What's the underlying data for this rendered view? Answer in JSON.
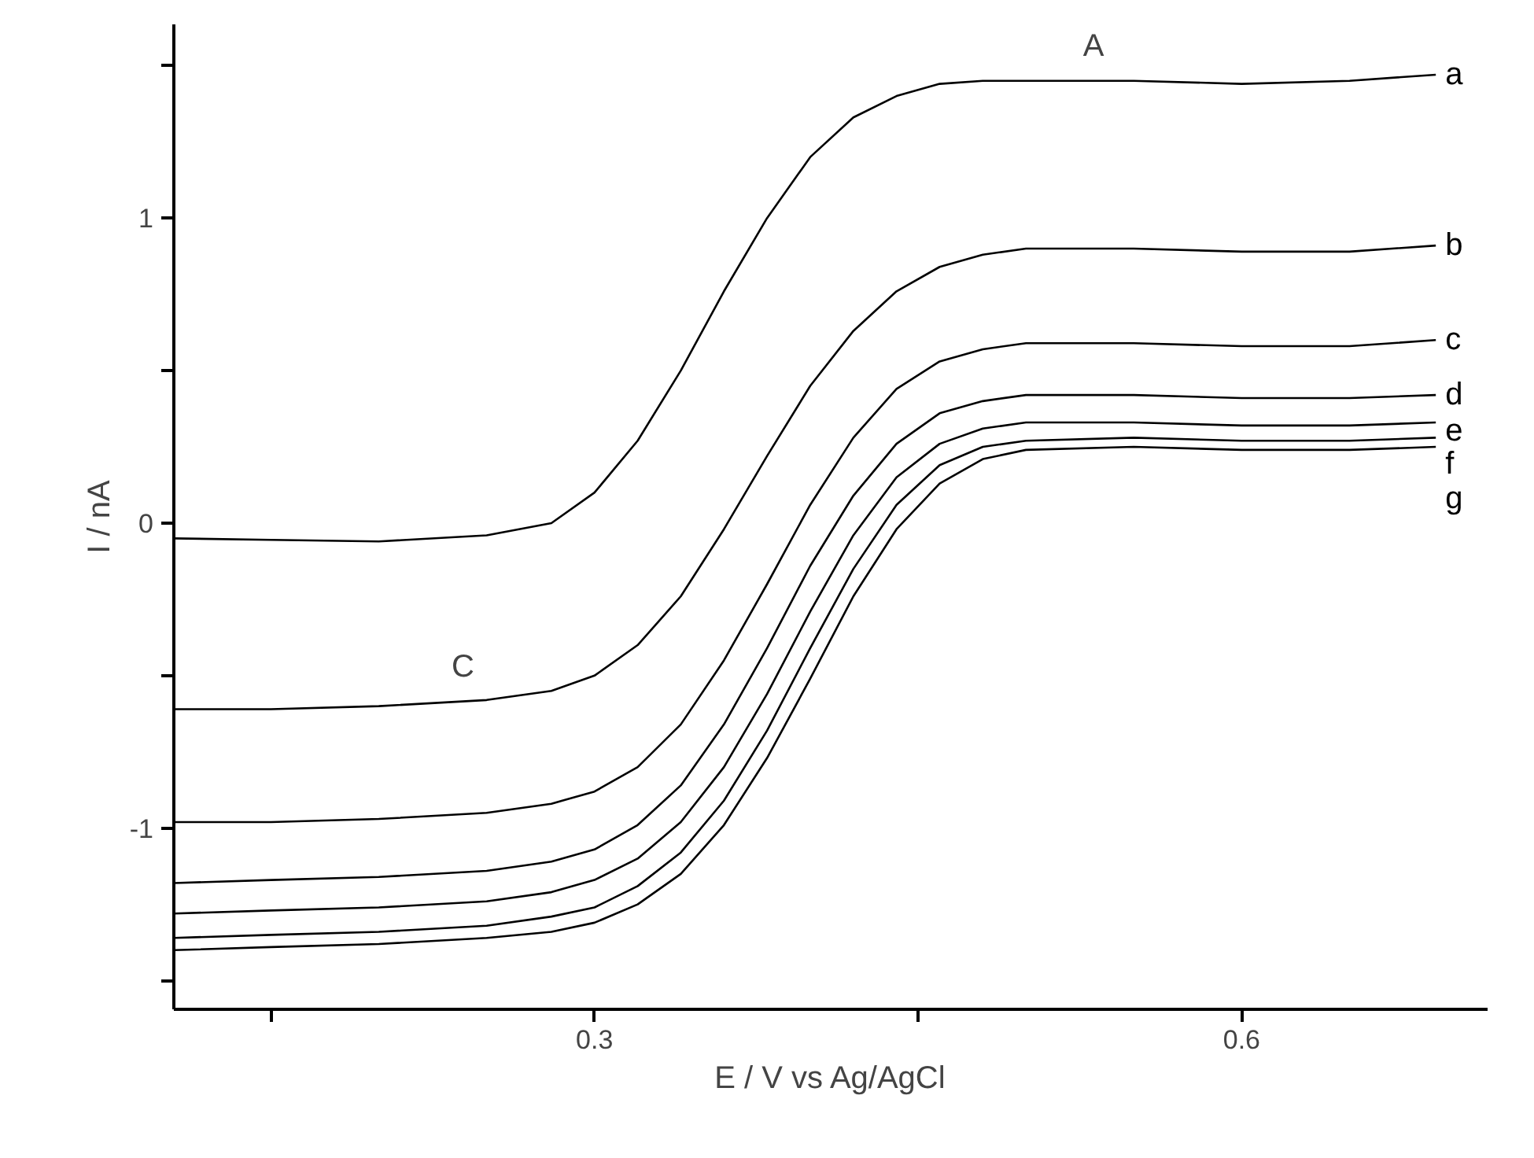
{
  "chart_data": {
    "type": "line",
    "xlabel": "E / V vs Ag/AgCl",
    "ylabel": "I / nA",
    "x": [
      0.105,
      0.15,
      0.2,
      0.25,
      0.28,
      0.3,
      0.32,
      0.34,
      0.36,
      0.38,
      0.4,
      0.42,
      0.44,
      0.46,
      0.48,
      0.5,
      0.55,
      0.6,
      0.65,
      0.69
    ],
    "series": [
      {
        "name": "a",
        "color": "#000000",
        "values": [
          -0.05,
          -0.055,
          -0.06,
          -0.04,
          0.0,
          0.1,
          0.27,
          0.5,
          0.76,
          1.0,
          1.2,
          1.33,
          1.4,
          1.44,
          1.45,
          1.45,
          1.45,
          1.44,
          1.45,
          1.47
        ]
      },
      {
        "name": "b",
        "color": "#000000",
        "values": [
          -0.61,
          -0.61,
          -0.6,
          -0.58,
          -0.55,
          -0.5,
          -0.4,
          -0.24,
          -0.02,
          0.22,
          0.45,
          0.63,
          0.76,
          0.84,
          0.88,
          0.9,
          0.9,
          0.89,
          0.89,
          0.91
        ]
      },
      {
        "name": "c",
        "color": "#000000",
        "values": [
          -0.98,
          -0.98,
          -0.97,
          -0.95,
          -0.92,
          -0.88,
          -0.8,
          -0.66,
          -0.45,
          -0.2,
          0.06,
          0.28,
          0.44,
          0.53,
          0.57,
          0.59,
          0.59,
          0.58,
          0.58,
          0.6
        ]
      },
      {
        "name": "d",
        "color": "#000000",
        "values": [
          -1.18,
          -1.17,
          -1.16,
          -1.14,
          -1.11,
          -1.07,
          -0.99,
          -0.86,
          -0.66,
          -0.41,
          -0.14,
          0.09,
          0.26,
          0.36,
          0.4,
          0.42,
          0.42,
          0.41,
          0.41,
          0.42
        ]
      },
      {
        "name": "e",
        "color": "#000000",
        "values": [
          -1.28,
          -1.27,
          -1.26,
          -1.24,
          -1.21,
          -1.17,
          -1.1,
          -0.98,
          -0.8,
          -0.56,
          -0.29,
          -0.04,
          0.15,
          0.26,
          0.31,
          0.33,
          0.33,
          0.32,
          0.32,
          0.33
        ]
      },
      {
        "name": "f",
        "color": "#000000",
        "values": [
          -1.36,
          -1.35,
          -1.34,
          -1.32,
          -1.29,
          -1.26,
          -1.19,
          -1.08,
          -0.91,
          -0.68,
          -0.41,
          -0.15,
          0.06,
          0.19,
          0.25,
          0.27,
          0.28,
          0.27,
          0.27,
          0.28
        ]
      },
      {
        "name": "g",
        "color": "#000000",
        "values": [
          -1.4,
          -1.39,
          -1.38,
          -1.36,
          -1.34,
          -1.31,
          -1.25,
          -1.15,
          -0.99,
          -0.77,
          -0.51,
          -0.24,
          -0.02,
          0.13,
          0.21,
          0.24,
          0.25,
          0.24,
          0.24,
          0.25
        ]
      }
    ],
    "annotations": [
      "A",
      "C"
    ],
    "xlim": [
      0.105,
      0.714
    ],
    "ylim": [
      -1.594,
      1.635
    ],
    "xticks": [
      {
        "value": 0.15,
        "label": null
      },
      0.3,
      {
        "value": 0.45,
        "label": null
      },
      0.6
    ],
    "yticks": [
      {
        "value": -1.5,
        "label": null
      },
      -1,
      {
        "value": -0.5,
        "label": null
      },
      0,
      {
        "value": 0.5,
        "label": null
      },
      1,
      {
        "value": 1.5,
        "label": null
      }
    ],
    "grid": false,
    "marker": "none",
    "line_style": "solid"
  }
}
